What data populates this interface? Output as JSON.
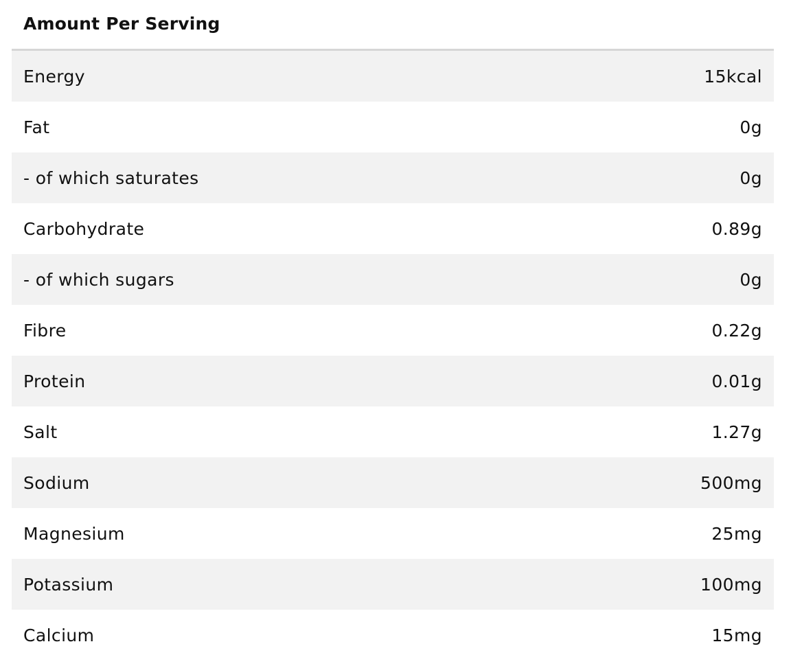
{
  "header": {
    "title": "Amount Per Serving"
  },
  "rows": [
    {
      "label": "Energy",
      "value": "15kcal"
    },
    {
      "label": "Fat",
      "value": "0g"
    },
    {
      "label": "- of which saturates",
      "value": "0g"
    },
    {
      "label": "Carbohydrate",
      "value": "0.89g"
    },
    {
      "label": "- of which sugars",
      "value": "0g"
    },
    {
      "label": "Fibre",
      "value": "0.22g"
    },
    {
      "label": "Protein",
      "value": "0.01g"
    },
    {
      "label": "Salt",
      "value": "1.27g"
    },
    {
      "label": "Sodium",
      "value": "500mg"
    },
    {
      "label": "Magnesium",
      "value": "25mg"
    },
    {
      "label": "Potassium",
      "value": "100mg"
    },
    {
      "label": "Calcium",
      "value": "15mg"
    }
  ],
  "colors": {
    "shaded_row": "#f2f2f2",
    "rule": "#d6d6d6",
    "text": "#111111"
  }
}
